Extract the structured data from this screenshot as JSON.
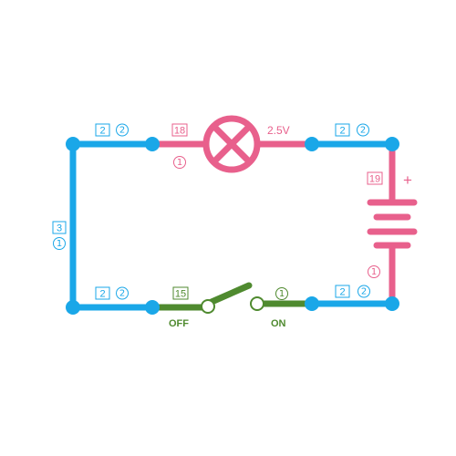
{
  "colors": {
    "blue": "#1aa7e8",
    "pink": "#e8608c",
    "green": "#4f8a2f",
    "background": "#ffffff"
  },
  "lamp": {
    "voltage_label": "2.5V",
    "part_number": "18",
    "count": "1"
  },
  "battery": {
    "polarity_label": "+",
    "part_number": "19",
    "count": "1"
  },
  "switch": {
    "part_number": "15",
    "count": "1",
    "off_label": "OFF",
    "on_label": "ON"
  },
  "wires": {
    "top_left": {
      "part_number": "2",
      "count": "2"
    },
    "top_right": {
      "part_number": "2",
      "count": "2"
    },
    "left": {
      "part_number": "3",
      "count": "1"
    },
    "bottom_left": {
      "part_number": "2",
      "count": "2"
    },
    "bottom_right": {
      "part_number": "2",
      "count": "2"
    }
  }
}
